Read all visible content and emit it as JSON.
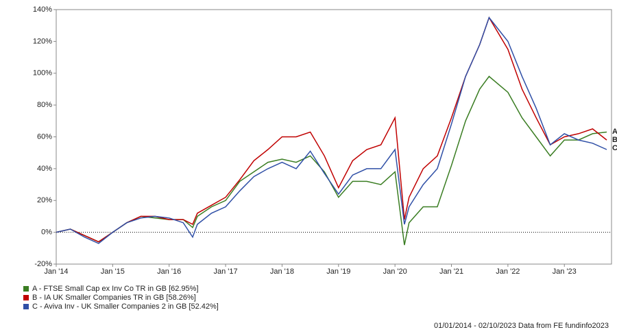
{
  "chart_data": {
    "type": "line",
    "x": [
      "2014-01",
      "2014-04",
      "2014-07",
      "2014-10",
      "2015-01",
      "2015-04",
      "2015-07",
      "2015-10",
      "2016-01",
      "2016-04",
      "2016-06",
      "2016-07",
      "2016-10",
      "2017-01",
      "2017-04",
      "2017-07",
      "2017-10",
      "2018-01",
      "2018-04",
      "2018-07",
      "2018-10",
      "2019-01",
      "2019-04",
      "2019-07",
      "2019-10",
      "2020-01",
      "2020-03",
      "2020-04",
      "2020-07",
      "2020-10",
      "2021-01",
      "2021-04",
      "2021-07",
      "2021-09",
      "2022-01",
      "2022-04",
      "2022-07",
      "2022-10",
      "2023-01",
      "2023-04",
      "2023-07",
      "2023-10"
    ],
    "series": [
      {
        "name": "A - FTSE Small Cap ex Inv Co TR in GB [62.95%]",
        "label": "A",
        "color": "#3a7d22",
        "values": [
          0,
          2,
          -2,
          -6,
          0,
          6,
          10,
          9,
          8,
          8,
          3,
          10,
          16,
          20,
          32,
          38,
          44,
          46,
          44,
          48,
          38,
          22,
          32,
          32,
          30,
          38,
          -8,
          6,
          16,
          16,
          42,
          70,
          90,
          98,
          88,
          72,
          60,
          48,
          58,
          58,
          62,
          63
        ]
      },
      {
        "name": "B - IA UK Smaller Companies TR in GB [58.26%]",
        "label": "B",
        "color": "#c00000",
        "values": [
          0,
          2,
          -2,
          -6,
          0,
          6,
          10,
          10,
          8,
          8,
          5,
          12,
          17,
          22,
          33,
          45,
          52,
          60,
          60,
          63,
          48,
          28,
          45,
          52,
          55,
          72,
          8,
          22,
          40,
          48,
          72,
          98,
          118,
          135,
          115,
          90,
          72,
          55,
          60,
          62,
          65,
          58
        ]
      },
      {
        "name": "C - Aviva Inv - UK Smaller Companies 2 in GB [52.42%]",
        "label": "C",
        "color": "#2f4fa6",
        "values": [
          0,
          2,
          -3,
          -7,
          0,
          6,
          9,
          10,
          9,
          6,
          -3,
          5,
          12,
          16,
          26,
          35,
          40,
          44,
          40,
          51,
          37,
          24,
          36,
          40,
          40,
          52,
          5,
          16,
          30,
          40,
          68,
          98,
          118,
          135,
          120,
          98,
          78,
          55,
          62,
          58,
          56,
          52
        ]
      }
    ],
    "xlim": [
      "2014-01",
      "2023-10"
    ],
    "xticks": [
      {
        "value": "2014-01",
        "label": "Jan '14"
      },
      {
        "value": "2015-01",
        "label": "Jan '15"
      },
      {
        "value": "2016-01",
        "label": "Jan '16"
      },
      {
        "value": "2017-01",
        "label": "Jan '17"
      },
      {
        "value": "2018-01",
        "label": "Jan '18"
      },
      {
        "value": "2019-01",
        "label": "Jan '19"
      },
      {
        "value": "2020-01",
        "label": "Jan '20"
      },
      {
        "value": "2021-01",
        "label": "Jan '21"
      },
      {
        "value": "2022-01",
        "label": "Jan '22"
      },
      {
        "value": "2023-01",
        "label": "Jan '23"
      }
    ],
    "ylim": [
      -20,
      140
    ],
    "yticks": [
      {
        "value": -20,
        "label": "-20%"
      },
      {
        "value": 0,
        "label": "0%"
      },
      {
        "value": 20,
        "label": "20%"
      },
      {
        "value": 40,
        "label": "40%"
      },
      {
        "value": 60,
        "label": "60%"
      },
      {
        "value": 80,
        "label": "80%"
      },
      {
        "value": 100,
        "label": "100%"
      },
      {
        "value": 120,
        "label": "120%"
      },
      {
        "value": 140,
        "label": "140%"
      }
    ],
    "footer": "01/01/2014 - 02/10/2023 Data from FE fundinfo2023"
  }
}
